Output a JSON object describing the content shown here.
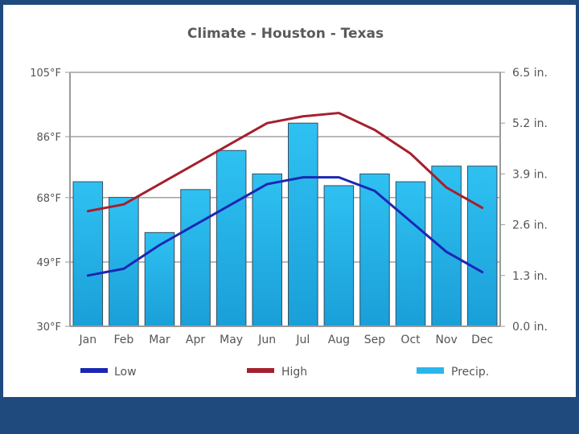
{
  "chart_data": {
    "type": "bar+line",
    "title": "Climate - Houston - Texas",
    "categories": [
      "Jan",
      "Feb",
      "Mar",
      "Apr",
      "May",
      "Jun",
      "Jul",
      "Aug",
      "Sep",
      "Oct",
      "Nov",
      "Dec"
    ],
    "left_axis": {
      "unit": "°F",
      "range": [
        30,
        105
      ],
      "ticks": [
        30,
        49,
        68,
        86,
        105
      ],
      "tick_labels": [
        "30°F",
        "49°F",
        "68°F",
        "86°F",
        "105°F"
      ]
    },
    "right_axis": {
      "unit": "in.",
      "range": [
        0,
        6.5
      ],
      "ticks": [
        0,
        1.3,
        2.6,
        3.9,
        5.2,
        6.5
      ],
      "tick_labels": [
        "0.0 in.",
        "1.3 in.",
        "2.6 in.",
        "3.9 in.",
        "5.2 in.",
        "6.5 in."
      ]
    },
    "series": [
      {
        "name": "Low",
        "type": "line",
        "axis": "left",
        "color": "#1b27b4",
        "values": [
          45,
          47,
          54,
          60,
          66,
          72,
          74,
          74,
          70,
          61,
          52,
          46
        ]
      },
      {
        "name": "High",
        "type": "line",
        "axis": "left",
        "color": "#a5202e",
        "values": [
          64,
          66,
          72,
          78,
          84,
          90,
          92,
          93,
          88,
          81,
          71,
          65
        ]
      },
      {
        "name": "Precip.",
        "type": "bar",
        "axis": "right",
        "color": "#29b6ec",
        "values": [
          3.7,
          3.3,
          2.4,
          3.5,
          4.5,
          3.9,
          5.2,
          3.6,
          3.9,
          3.7,
          4.1,
          4.1
        ]
      }
    ],
    "legend": {
      "position": "bottom",
      "labels": [
        "Low",
        "High",
        "Precip."
      ]
    },
    "grid": true
  }
}
